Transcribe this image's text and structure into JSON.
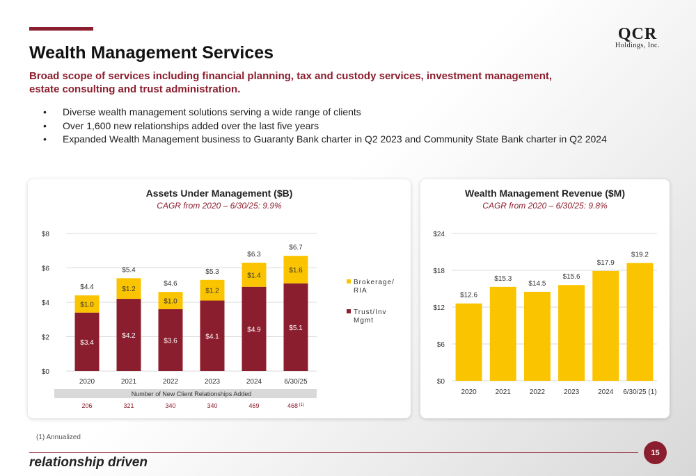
{
  "slide": {
    "title": "Wealth Management Services",
    "subtitle": "Broad scope of services including financial planning, tax and custody services, investment management, estate consulting and trust administration.",
    "bullets": [
      "Diverse wealth management solutions serving a wide range of clients",
      "Over 1,600 new relationships added over the last five years",
      "Expanded Wealth Management business to Guaranty Bank charter in Q2 2023 and Community State Bank charter in Q2 2024"
    ],
    "logo_line1": "QCR",
    "logo_line2": "Holdings, Inc.",
    "footnote": "(1) Annualized",
    "brand": "relationship driven",
    "page_number": "15"
  },
  "colors": {
    "maroon": "#8b1e2e",
    "gold": "#fbc400",
    "gridline": "#d9d9d9"
  },
  "chart_data": [
    {
      "type": "bar",
      "stacked": true,
      "title": "Assets Under Management ($B)",
      "subtitle": "CAGR from 2020 – 6/30/25: 9.9%",
      "categories": [
        "2020",
        "2021",
        "2022",
        "2023",
        "2024",
        "6/30/25"
      ],
      "series": [
        {
          "name": "Trust/Inv Mgmt",
          "color": "#8b1e2e",
          "values": [
            3.4,
            4.2,
            3.6,
            4.1,
            4.9,
            5.1
          ],
          "labels": [
            "$3.4",
            "$4.2",
            "$3.6",
            "$4.1",
            "$4.9",
            "$5.1"
          ]
        },
        {
          "name": "Brokerage/ RIA",
          "color": "#fbc400",
          "values": [
            1.0,
            1.2,
            1.0,
            1.2,
            1.4,
            1.6
          ],
          "labels": [
            "$1.0",
            "$1.2",
            "$1.0",
            "$1.2",
            "$1.4",
            "$1.6"
          ]
        }
      ],
      "totals": [
        4.4,
        5.4,
        4.6,
        5.3,
        6.3,
        6.7
      ],
      "total_labels": [
        "$4.4",
        "$5.4",
        "$4.6",
        "$5.3",
        "$6.3",
        "$6.7"
      ],
      "ylim": [
        0,
        8
      ],
      "yticks": [
        0,
        2,
        4,
        6,
        8
      ],
      "ytick_labels": [
        "$0",
        "$2",
        "$4",
        "$6",
        "$8"
      ],
      "legend_position": "right",
      "grid": true,
      "relationships_label": "Number of New Client Relationships Added",
      "relationships": [
        "206",
        "321",
        "340",
        "340",
        "469",
        "468"
      ],
      "relationships_note": "(1)"
    },
    {
      "type": "bar",
      "title": "Wealth Management Revenue ($M)",
      "subtitle": "CAGR from 2020 – 6/30/25: 9.8%",
      "categories": [
        "2020",
        "2021",
        "2022",
        "2023",
        "2024",
        "6/30/25 (1)"
      ],
      "series": [
        {
          "color": "#fbc400",
          "values": [
            12.6,
            15.3,
            14.5,
            15.6,
            17.9,
            19.2
          ],
          "labels": [
            "$12.6",
            "$15.3",
            "$14.5",
            "$15.6",
            "$17.9",
            "$19.2"
          ]
        }
      ],
      "ylim": [
        0,
        24
      ],
      "yticks": [
        0,
        6,
        12,
        18,
        24
      ],
      "ytick_labels": [
        "$0",
        "$6",
        "$12",
        "$18",
        "$24"
      ],
      "grid": true
    }
  ]
}
